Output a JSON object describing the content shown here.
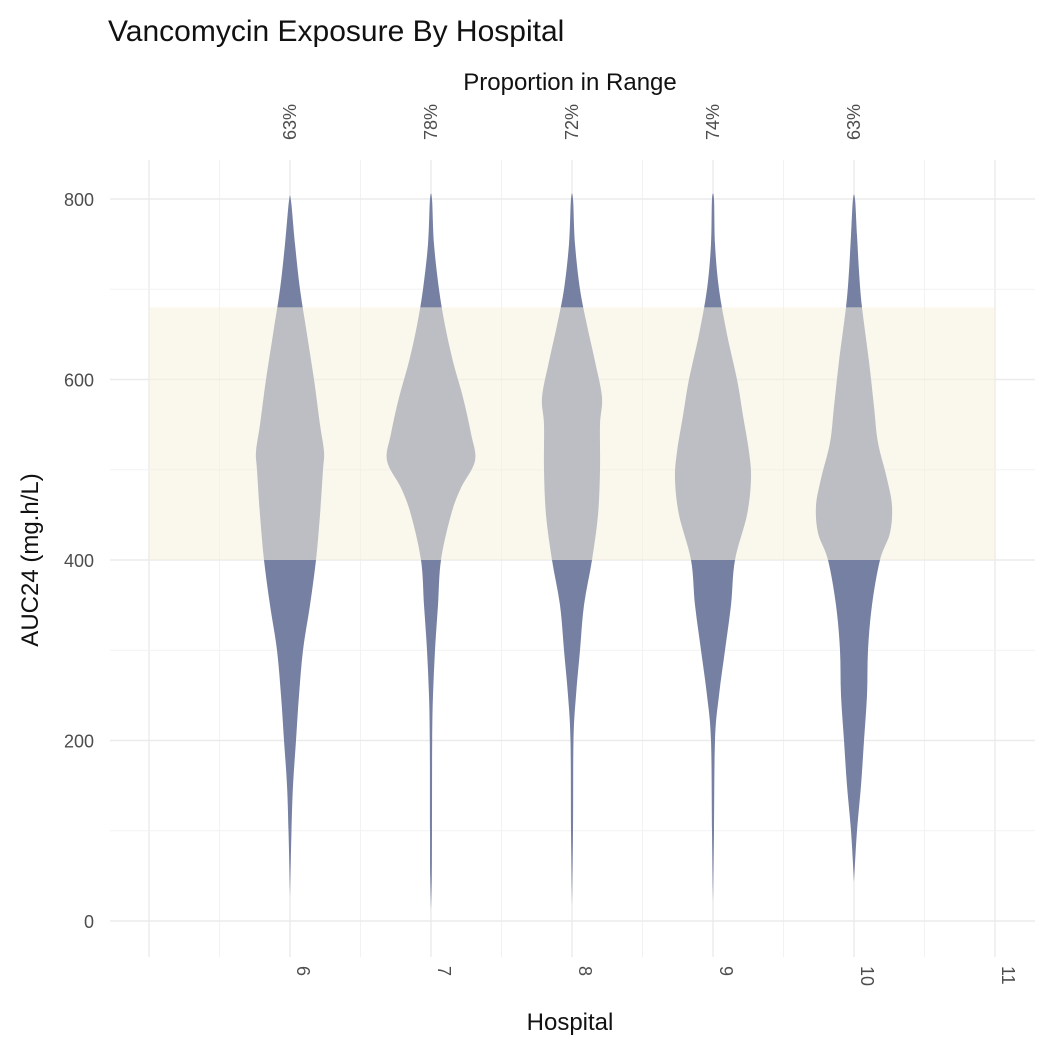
{
  "chart_data": {
    "type": "violin",
    "title": "Vancomycin Exposure By Hospital",
    "top_axis_title": "Proportion in Range",
    "xlabel": "Hospital",
    "ylabel": "AUC24 (mg.h/L)",
    "x_ticks": [
      "6",
      "7",
      "8",
      "9",
      "10",
      "11"
    ],
    "x_range": [
      5,
      11
    ],
    "y_ticks": [
      "0",
      "200",
      "400",
      "600",
      "800"
    ],
    "ylim": [
      -40,
      860
    ],
    "grid": true,
    "target_range": [
      400,
      680
    ],
    "colors": {
      "violin_fill": "#7680a2",
      "band_fill": "#f6f1df",
      "band_opacity": 0.55,
      "grid": "#ebebeb"
    },
    "violins": [
      {
        "hospital": "6",
        "proportion_in_range": "63%",
        "min": 27,
        "max": 798,
        "profile": [
          [
            27,
            0.0
          ],
          [
            100,
            0.015
          ],
          [
            150,
            0.03
          ],
          [
            200,
            0.06
          ],
          [
            250,
            0.09
          ],
          [
            300,
            0.13
          ],
          [
            350,
            0.2
          ],
          [
            400,
            0.26
          ],
          [
            450,
            0.3
          ],
          [
            500,
            0.33
          ],
          [
            520,
            0.34
          ],
          [
            550,
            0.3
          ],
          [
            600,
            0.24
          ],
          [
            650,
            0.17
          ],
          [
            700,
            0.1
          ],
          [
            750,
            0.05
          ],
          [
            798,
            0.01
          ]
        ]
      },
      {
        "hospital": "7",
        "proportion_in_range": "78%",
        "min": 12,
        "max": 800,
        "profile": [
          [
            12,
            0.0
          ],
          [
            50,
            0.008
          ],
          [
            100,
            0.01
          ],
          [
            200,
            0.012
          ],
          [
            250,
            0.02
          ],
          [
            300,
            0.04
          ],
          [
            350,
            0.07
          ],
          [
            400,
            0.1
          ],
          [
            450,
            0.2
          ],
          [
            480,
            0.3
          ],
          [
            510,
            0.44
          ],
          [
            540,
            0.4
          ],
          [
            580,
            0.32
          ],
          [
            620,
            0.22
          ],
          [
            660,
            0.14
          ],
          [
            700,
            0.08
          ],
          [
            750,
            0.03
          ],
          [
            800,
            0.01
          ]
        ]
      },
      {
        "hospital": "8",
        "proportion_in_range": "72%",
        "min": 18,
        "max": 800,
        "profile": [
          [
            18,
            0.0
          ],
          [
            100,
            0.01
          ],
          [
            200,
            0.015
          ],
          [
            250,
            0.04
          ],
          [
            300,
            0.08
          ],
          [
            350,
            0.12
          ],
          [
            400,
            0.2
          ],
          [
            450,
            0.26
          ],
          [
            500,
            0.28
          ],
          [
            550,
            0.28
          ],
          [
            580,
            0.3
          ],
          [
            620,
            0.23
          ],
          [
            660,
            0.15
          ],
          [
            700,
            0.08
          ],
          [
            750,
            0.03
          ],
          [
            800,
            0.01
          ]
        ]
      },
      {
        "hospital": "9",
        "proportion_in_range": "74%",
        "min": 21,
        "max": 800,
        "profile": [
          [
            21,
            0.0
          ],
          [
            100,
            0.01
          ],
          [
            200,
            0.02
          ],
          [
            250,
            0.06
          ],
          [
            300,
            0.12
          ],
          [
            350,
            0.18
          ],
          [
            400,
            0.22
          ],
          [
            450,
            0.34
          ],
          [
            490,
            0.38
          ],
          [
            520,
            0.36
          ],
          [
            560,
            0.3
          ],
          [
            600,
            0.24
          ],
          [
            650,
            0.14
          ],
          [
            700,
            0.06
          ],
          [
            750,
            0.02
          ],
          [
            800,
            0.01
          ]
        ]
      },
      {
        "hospital": "10",
        "proportion_in_range": "63%",
        "min": 43,
        "max": 800,
        "profile": [
          [
            43,
            0.0
          ],
          [
            100,
            0.03
          ],
          [
            150,
            0.07
          ],
          [
            200,
            0.1
          ],
          [
            250,
            0.13
          ],
          [
            300,
            0.14
          ],
          [
            350,
            0.18
          ],
          [
            400,
            0.26
          ],
          [
            430,
            0.36
          ],
          [
            460,
            0.38
          ],
          [
            490,
            0.33
          ],
          [
            530,
            0.24
          ],
          [
            570,
            0.2
          ],
          [
            620,
            0.15
          ],
          [
            680,
            0.08
          ],
          [
            720,
            0.05
          ],
          [
            760,
            0.03
          ],
          [
            800,
            0.01
          ]
        ]
      }
    ]
  }
}
